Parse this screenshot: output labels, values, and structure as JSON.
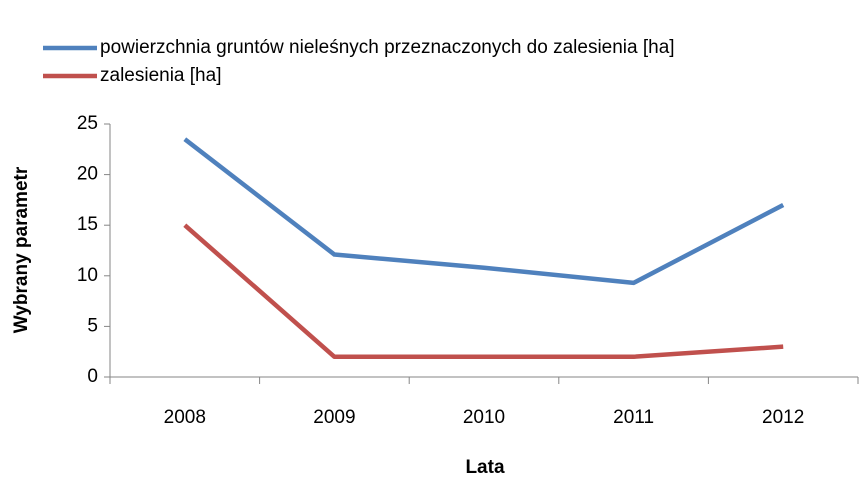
{
  "chart_data": {
    "type": "line",
    "x_label": "Lata",
    "y_label": "Wybrany parametr",
    "categories": [
      "2008",
      "2009",
      "2010",
      "2011",
      "2012"
    ],
    "series": [
      {
        "name": "powierzchnia gruntów nieleśnych przeznaczonych do zalesienia [ha]",
        "color": "#4f81bd",
        "values": [
          23.5,
          12.1,
          10.8,
          9.3,
          17
        ]
      },
      {
        "name": "zalesienia [ha]",
        "color": "#c0504d",
        "values": [
          15,
          2,
          2,
          2,
          3
        ]
      }
    ],
    "ylim": [
      0,
      25
    ],
    "yticks": [
      0,
      5,
      10,
      15,
      20,
      25
    ],
    "grid": false,
    "legend": "top-left"
  }
}
